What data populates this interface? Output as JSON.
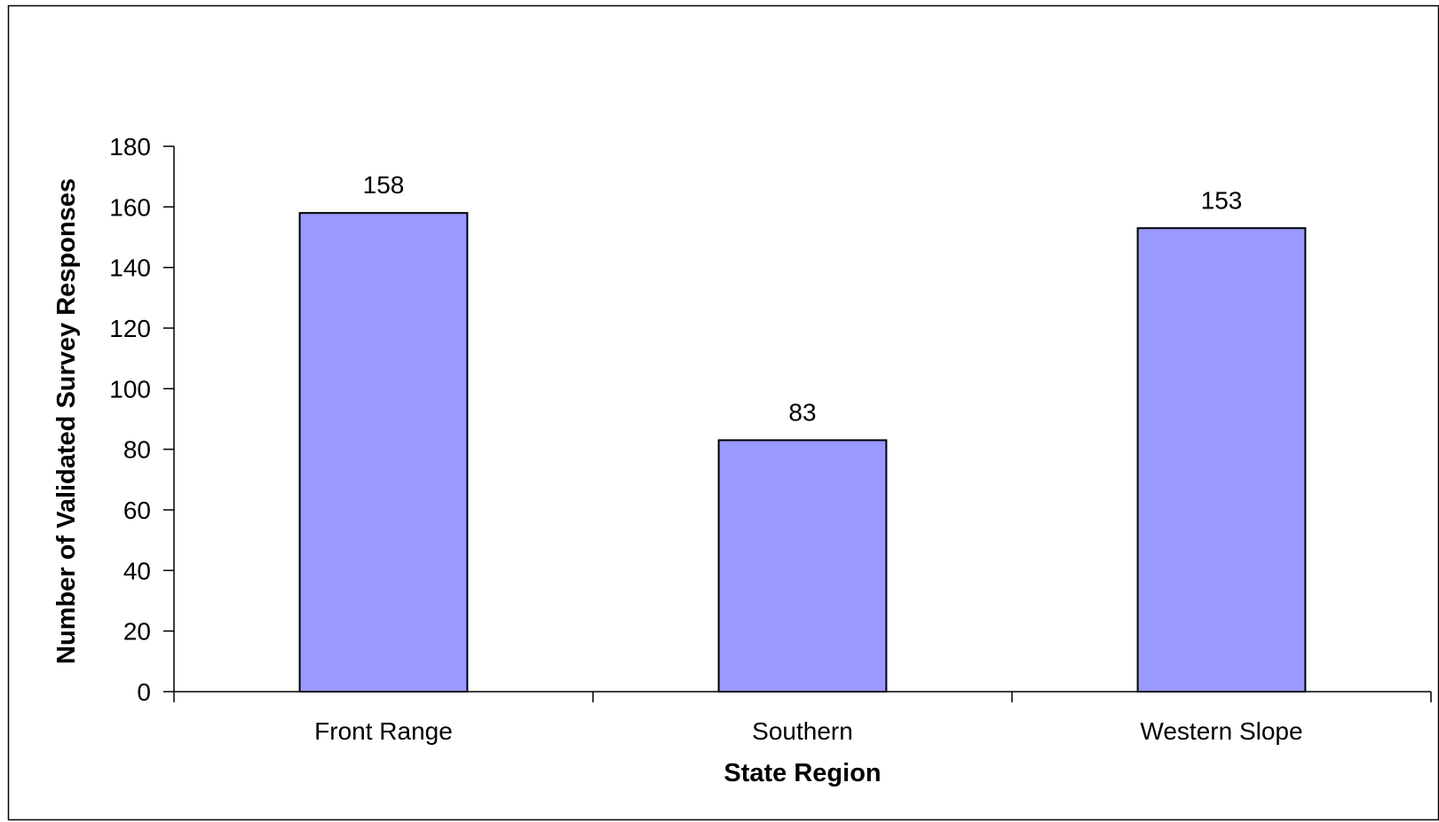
{
  "chart_data": {
    "type": "bar",
    "title": "",
    "xlabel": "State Region",
    "ylabel": "Number of Validated Survey Responses",
    "categories": [
      "Front Range",
      "Southern",
      "Western Slope"
    ],
    "values": [
      158,
      83,
      153
    ],
    "data_labels": [
      "158",
      "83",
      "153"
    ],
    "ylim": [
      0,
      180
    ],
    "yticks": [
      0,
      20,
      40,
      60,
      80,
      100,
      120,
      140,
      160,
      180
    ],
    "ytick_labels": [
      "0",
      "20",
      "40",
      "60",
      "80",
      "100",
      "120",
      "140",
      "160",
      "180"
    ],
    "grid": false,
    "legend": "none",
    "colors": {
      "bar_fill": "#9999ff",
      "bar_stroke": "#000000",
      "axis": "#000000",
      "frame": "#000000"
    }
  }
}
